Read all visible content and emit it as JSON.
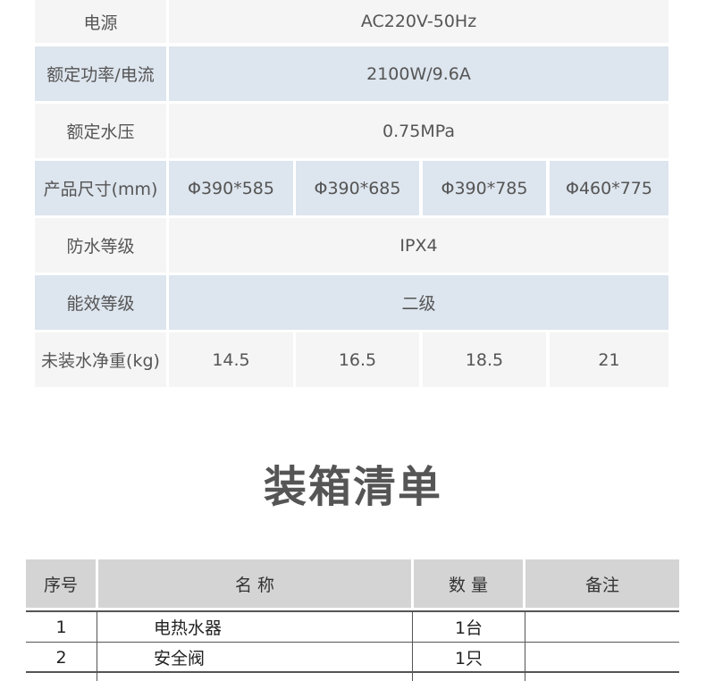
{
  "spec_table": {
    "rows": [
      {
        "label": "电源",
        "value": "AC220V-50Hz"
      },
      {
        "label": "额定功率/电流",
        "value": "2100W/9.6A"
      },
      {
        "label": "额定水压",
        "value": "0.75MPa"
      },
      {
        "label": "产品尺寸(mm)",
        "values": [
          "Φ390*585",
          "Φ390*685",
          "Φ390*785",
          "Φ460*775"
        ]
      },
      {
        "label": "防水等级",
        "value": "IPX4"
      },
      {
        "label": "能效等级",
        "value": "二级"
      },
      {
        "label": "未装水净重(kg)",
        "values": [
          "14.5",
          "16.5",
          "18.5",
          "21"
        ]
      }
    ]
  },
  "packing": {
    "title": "装箱清单",
    "headers": [
      "序号",
      "名 称",
      "数 量",
      "备注"
    ],
    "rows": [
      {
        "no": "1",
        "name": "电热水器",
        "qty": "1台",
        "note": ""
      },
      {
        "no": "2",
        "name": "安全阀",
        "qty": "1只",
        "note": ""
      }
    ]
  },
  "colors": {
    "row_gray": "#f5f5f5",
    "row_blue": "#dde5ee",
    "header_gray": "#d4d4d4"
  }
}
